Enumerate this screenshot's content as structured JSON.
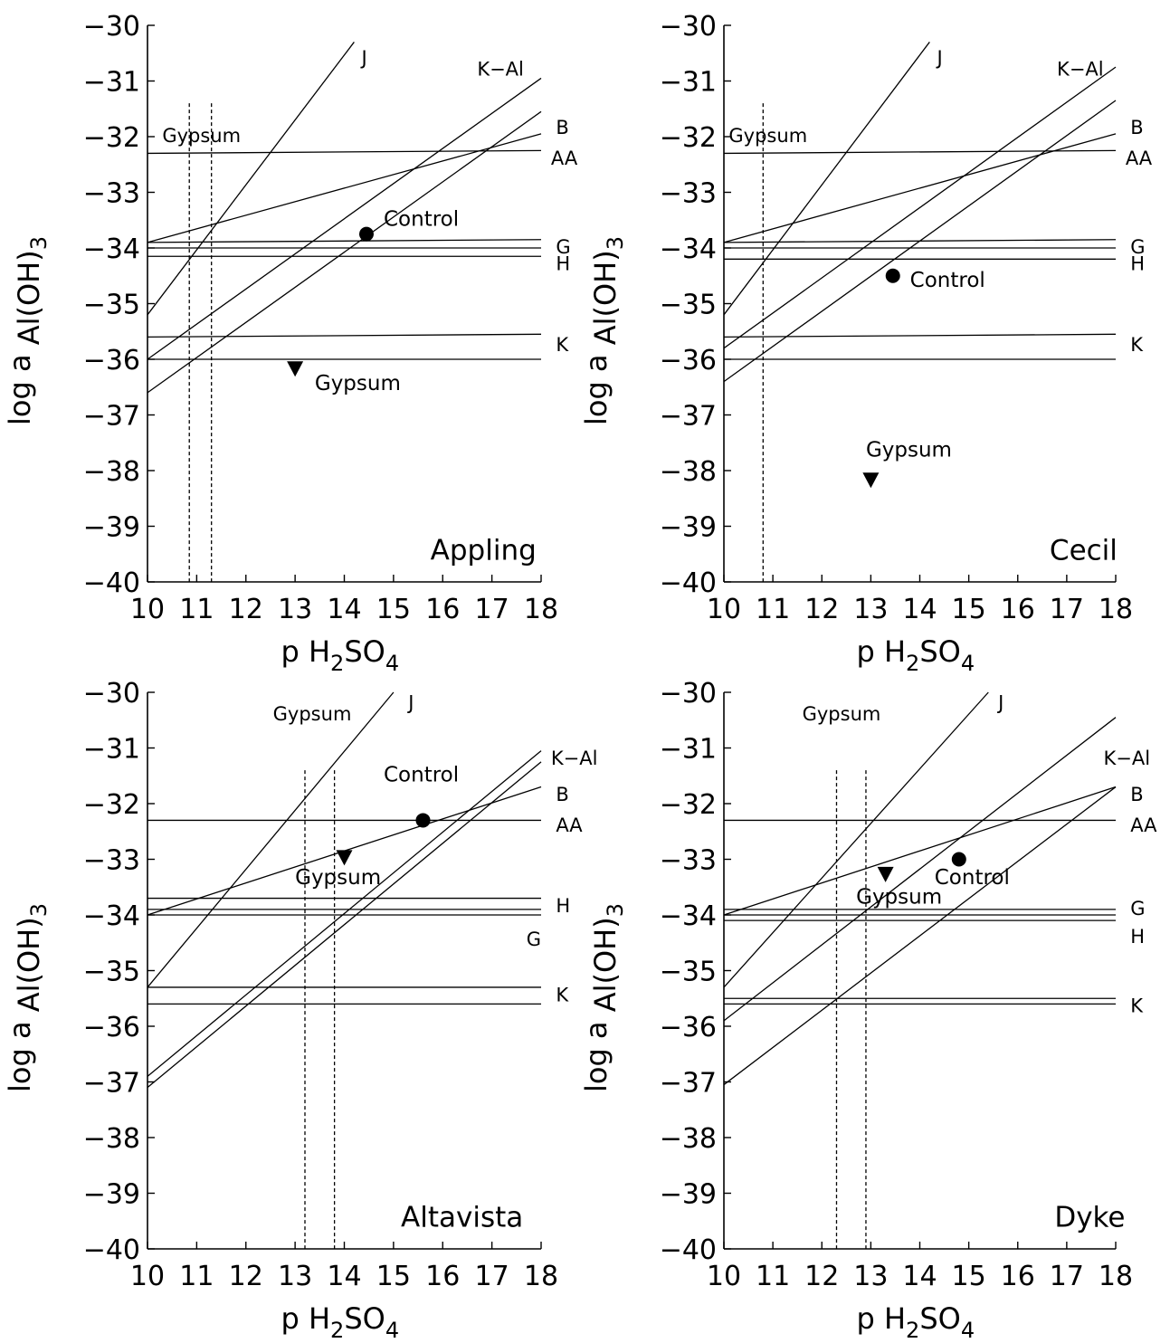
{
  "chart_data": [
    {
      "type": "line",
      "panel_label": "Appling",
      "xlabel": {
        "prefix": "p H",
        "sub1": "2",
        "mid": "SO",
        "sub2": "4"
      },
      "ylabel": {
        "prefix": "log a ",
        "sub": "Al(OH)",
        "post": "3"
      },
      "xlim": [
        10,
        18
      ],
      "ylim": [
        -40,
        -30
      ],
      "xticks": [
        "10",
        "11",
        "12",
        "13",
        "14",
        "15",
        "16",
        "17",
        "18"
      ],
      "yticks": [
        "−30",
        "−31",
        "−32",
        "−33",
        "−34",
        "−35",
        "−36",
        "−37",
        "−38",
        "−39",
        "−40"
      ],
      "series": [
        {
          "name": "J",
          "points": [
            [
              10,
              -35.2
            ],
            [
              14.2,
              -30.3
            ]
          ]
        },
        {
          "name": "K−Al",
          "points": [
            [
              10,
              -36.0
            ],
            [
              18,
              -30.95
            ]
          ]
        },
        {
          "name": "B",
          "points": [
            [
              10,
              -33.9
            ],
            [
              18,
              -31.95
            ]
          ]
        },
        {
          "name": "",
          "points": [
            [
              10,
              -36.6
            ],
            [
              18,
              -31.55
            ]
          ]
        },
        {
          "name": "AA",
          "points": [
            [
              10,
              -32.3
            ],
            [
              18,
              -32.25
            ]
          ]
        },
        {
          "name": "G",
          "points": [
            [
              10,
              -33.9
            ],
            [
              18,
              -33.85
            ]
          ]
        },
        {
          "name": "",
          "points": [
            [
              10,
              -34.0
            ],
            [
              18,
              -34.0
            ]
          ]
        },
        {
          "name": "H",
          "points": [
            [
              10,
              -34.15
            ],
            [
              18,
              -34.15
            ]
          ]
        },
        {
          "name": "K",
          "points": [
            [
              10,
              -35.6
            ],
            [
              18,
              -35.55
            ]
          ]
        },
        {
          "name": "",
          "points": [
            [
              10,
              -36.0
            ],
            [
              18,
              -36.0
            ]
          ]
        }
      ],
      "line_labels": [
        {
          "text": "J",
          "x": 14.35,
          "y": -30.7
        },
        {
          "text": "K−Al",
          "x": 16.7,
          "y": -30.9
        },
        {
          "text": "B",
          "x": 18.3,
          "y": -31.95
        },
        {
          "text": "AA",
          "x": 18.2,
          "y": -32.5
        },
        {
          "text": "G",
          "x": 18.3,
          "y": -34.1
        },
        {
          "text": "H",
          "x": 18.3,
          "y": -34.4
        },
        {
          "text": "K",
          "x": 18.3,
          "y": -35.85
        }
      ],
      "gypsum_lines": [
        10.85,
        11.3
      ],
      "gypsum_line_label": {
        "text": "Gypsum",
        "x": 10.3,
        "y": -32.1
      },
      "points": [
        {
          "name": "Control",
          "marker": "circle",
          "x": 14.45,
          "y": -33.75,
          "label_x": 14.8,
          "label_y": -33.6
        },
        {
          "name": "Gypsum",
          "marker": "triangle",
          "x": 13.0,
          "y": -36.15,
          "label_x": 13.4,
          "label_y": -36.55
        }
      ],
      "site_label": {
        "text": "Appling",
        "x": 15.75,
        "y": -39.6
      }
    },
    {
      "type": "line",
      "panel_label": "Cecil",
      "xlabel": {
        "prefix": "p H",
        "sub1": "2",
        "mid": "SO",
        "sub2": "4"
      },
      "ylabel": {
        "prefix": "log a ",
        "sub": "Al(OH)",
        "post": "3"
      },
      "xlim": [
        10,
        18
      ],
      "ylim": [
        -40,
        -30
      ],
      "xticks": [
        "10",
        "11",
        "12",
        "13",
        "14",
        "15",
        "16",
        "17",
        "18"
      ],
      "yticks": [
        "−30",
        "−31",
        "−32",
        "−33",
        "−34",
        "−35",
        "−36",
        "−37",
        "−38",
        "−39",
        "−40"
      ],
      "series": [
        {
          "name": "J",
          "points": [
            [
              10,
              -35.2
            ],
            [
              14.2,
              -30.3
            ]
          ]
        },
        {
          "name": "K−Al",
          "points": [
            [
              10,
              -35.8
            ],
            [
              18,
              -30.75
            ]
          ]
        },
        {
          "name": "B",
          "points": [
            [
              10,
              -33.9
            ],
            [
              18,
              -31.95
            ]
          ]
        },
        {
          "name": "",
          "points": [
            [
              10,
              -36.4
            ],
            [
              18,
              -31.35
            ]
          ]
        },
        {
          "name": "AA",
          "points": [
            [
              10,
              -32.3
            ],
            [
              18,
              -32.25
            ]
          ]
        },
        {
          "name": "G",
          "points": [
            [
              10,
              -33.9
            ],
            [
              18,
              -33.85
            ]
          ]
        },
        {
          "name": "",
          "points": [
            [
              10,
              -34.0
            ],
            [
              18,
              -34.0
            ]
          ]
        },
        {
          "name": "H",
          "points": [
            [
              10,
              -34.2
            ],
            [
              18,
              -34.2
            ]
          ]
        },
        {
          "name": "K",
          "points": [
            [
              10,
              -35.6
            ],
            [
              18,
              -35.55
            ]
          ]
        },
        {
          "name": "",
          "points": [
            [
              10,
              -36.0
            ],
            [
              18,
              -36.0
            ]
          ]
        }
      ],
      "line_labels": [
        {
          "text": "J",
          "x": 14.35,
          "y": -30.7
        },
        {
          "text": "K−Al",
          "x": 16.8,
          "y": -30.9
        },
        {
          "text": "B",
          "x": 18.3,
          "y": -31.95
        },
        {
          "text": "AA",
          "x": 18.2,
          "y": -32.5
        },
        {
          "text": "G",
          "x": 18.3,
          "y": -34.1
        },
        {
          "text": "H",
          "x": 18.3,
          "y": -34.4
        },
        {
          "text": "K",
          "x": 18.3,
          "y": -35.85
        }
      ],
      "gypsum_lines": [
        10.8
      ],
      "gypsum_line_label": {
        "text": "Gypsum",
        "x": 10.1,
        "y": -32.1
      },
      "points": [
        {
          "name": "Control",
          "marker": "circle",
          "x": 13.45,
          "y": -34.5,
          "label_x": 13.8,
          "label_y": -34.7
        },
        {
          "name": "Gypsum",
          "marker": "triangle",
          "x": 13.0,
          "y": -38.15,
          "label_x": 12.9,
          "label_y": -37.75
        }
      ],
      "site_label": {
        "text": "Cecil",
        "x": 16.65,
        "y": -39.6
      }
    },
    {
      "type": "line",
      "panel_label": "Altavista",
      "xlabel": {
        "prefix": "p H",
        "sub1": "2",
        "mid": "SO",
        "sub2": "4"
      },
      "ylabel": {
        "prefix": "log a ",
        "sub": "Al(OH)",
        "post": "3"
      },
      "xlim": [
        10,
        18
      ],
      "ylim": [
        -40,
        -30
      ],
      "xticks": [
        "10",
        "11",
        "12",
        "13",
        "14",
        "15",
        "16",
        "17",
        "18"
      ],
      "yticks": [
        "−30",
        "−31",
        "−32",
        "−33",
        "−34",
        "−35",
        "−36",
        "−37",
        "−38",
        "−39",
        "−40"
      ],
      "series": [
        {
          "name": "J",
          "points": [
            [
              10,
              -35.3
            ],
            [
              15.0,
              -30.0
            ]
          ]
        },
        {
          "name": "K−Al",
          "points": [
            [
              10,
              -36.9
            ],
            [
              18,
              -31.05
            ]
          ]
        },
        {
          "name": "",
          "points": [
            [
              10,
              -37.1
            ],
            [
              18,
              -31.25
            ]
          ]
        },
        {
          "name": "B",
          "points": [
            [
              10,
              -34.0
            ],
            [
              18,
              -31.7
            ]
          ]
        },
        {
          "name": "AA",
          "points": [
            [
              10,
              -32.3
            ],
            [
              18,
              -32.3
            ]
          ]
        },
        {
          "name": "H",
          "points": [
            [
              10,
              -33.7
            ],
            [
              18,
              -33.7
            ]
          ]
        },
        {
          "name": "",
          "points": [
            [
              10,
              -33.9
            ],
            [
              18,
              -33.9
            ]
          ]
        },
        {
          "name": "G",
          "points": [
            [
              10,
              -34.0
            ],
            [
              18,
              -34.0
            ]
          ]
        },
        {
          "name": "K",
          "points": [
            [
              10,
              -35.3
            ],
            [
              18,
              -35.3
            ]
          ]
        },
        {
          "name": "",
          "points": [
            [
              10,
              -35.6
            ],
            [
              18,
              -35.6
            ]
          ]
        }
      ],
      "line_labels": [
        {
          "text": "J",
          "x": 15.3,
          "y": -30.3
        },
        {
          "text": "K−Al",
          "x": 18.2,
          "y": -31.3
        },
        {
          "text": "B",
          "x": 18.3,
          "y": -31.95
        },
        {
          "text": "AA",
          "x": 18.3,
          "y": -32.5
        },
        {
          "text": "H",
          "x": 18.3,
          "y": -33.95
        },
        {
          "text": "G",
          "x": 17.7,
          "y": -34.55
        },
        {
          "text": "K",
          "x": 18.3,
          "y": -35.55
        }
      ],
      "gypsum_lines": [
        13.2,
        13.8
      ],
      "gypsum_line_label": {
        "text": "Gypsum",
        "x": 12.55,
        "y": -30.5
      },
      "points": [
        {
          "name": "Control",
          "marker": "circle",
          "x": 15.6,
          "y": -32.3,
          "label_x": 14.8,
          "label_y": -31.6
        },
        {
          "name": "Gypsum",
          "marker": "triangle",
          "x": 14.0,
          "y": -32.95,
          "label_x": 13.0,
          "label_y": -33.45
        }
      ],
      "site_label": {
        "text": "Altavista",
        "x": 15.15,
        "y": -39.6
      }
    },
    {
      "type": "line",
      "panel_label": "Dyke",
      "xlabel": {
        "prefix": "p H",
        "sub1": "2",
        "mid": "SO",
        "sub2": "4"
      },
      "ylabel": {
        "prefix": "log a ",
        "sub": "Al(OH)",
        "post": "3"
      },
      "xlim": [
        10,
        18
      ],
      "ylim": [
        -40,
        -30
      ],
      "xticks": [
        "10",
        "11",
        "12",
        "13",
        "14",
        "15",
        "16",
        "17",
        "18"
      ],
      "yticks": [
        "−30",
        "−31",
        "−32",
        "−33",
        "−34",
        "−35",
        "−36",
        "−37",
        "−38",
        "−39",
        "−40"
      ],
      "series": [
        {
          "name": "J",
          "points": [
            [
              10,
              -35.3
            ],
            [
              15.4,
              -30.0
            ]
          ]
        },
        {
          "name": "",
          "points": [
            [
              10,
              -35.9
            ],
            [
              18,
              -30.45
            ]
          ]
        },
        {
          "name": "K−Al",
          "points": [
            [
              10,
              -37.05
            ],
            [
              18,
              -31.7
            ]
          ]
        },
        {
          "name": "B",
          "points": [
            [
              10,
              -34.0
            ],
            [
              18,
              -31.7
            ]
          ]
        },
        {
          "name": "AA",
          "points": [
            [
              10,
              -32.3
            ],
            [
              18,
              -32.3
            ]
          ]
        },
        {
          "name": "G",
          "points": [
            [
              10,
              -33.9
            ],
            [
              18,
              -33.9
            ]
          ]
        },
        {
          "name": "",
          "points": [
            [
              10,
              -34.0
            ],
            [
              18,
              -34.0
            ]
          ]
        },
        {
          "name": "H",
          "points": [
            [
              10,
              -34.1
            ],
            [
              18,
              -34.1
            ]
          ]
        },
        {
          "name": "K",
          "points": [
            [
              10,
              -35.5
            ],
            [
              18,
              -35.5
            ]
          ]
        },
        {
          "name": "",
          "points": [
            [
              10,
              -35.6
            ],
            [
              18,
              -35.6
            ]
          ]
        }
      ],
      "line_labels": [
        {
          "text": "J",
          "x": 15.6,
          "y": -30.3
        },
        {
          "text": "K−Al",
          "x": 17.75,
          "y": -31.3
        },
        {
          "text": "B",
          "x": 18.3,
          "y": -31.95
        },
        {
          "text": "AA",
          "x": 18.3,
          "y": -32.5
        },
        {
          "text": "G",
          "x": 18.3,
          "y": -34.0
        },
        {
          "text": "H",
          "x": 18.3,
          "y": -34.5
        },
        {
          "text": "K",
          "x": 18.3,
          "y": -35.75
        }
      ],
      "gypsum_lines": [
        12.3,
        12.9
      ],
      "gypsum_line_label": {
        "text": "Gypsum",
        "x": 11.6,
        "y": -30.5
      },
      "points": [
        {
          "name": "Control",
          "marker": "circle",
          "x": 14.8,
          "y": -33.0,
          "label_x": 14.3,
          "label_y": -33.45
        },
        {
          "name": "Gypsum",
          "marker": "triangle",
          "x": 13.3,
          "y": -33.25,
          "label_x": 12.7,
          "label_y": -33.8
        }
      ],
      "site_label": {
        "text": "Dyke",
        "x": 16.75,
        "y": -39.6
      }
    }
  ]
}
